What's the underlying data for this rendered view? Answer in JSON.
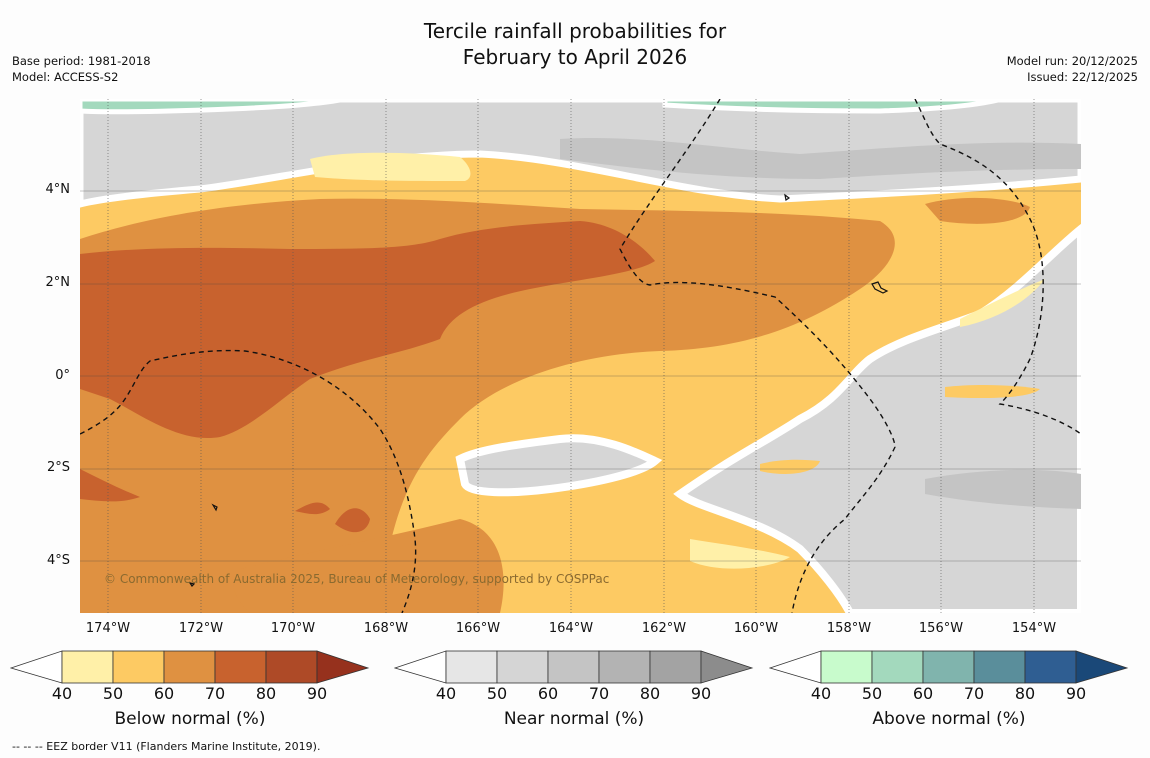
{
  "title": {
    "line1": "Tercile rainfall probabilities for",
    "line2": "February to April 2026"
  },
  "meta_left": {
    "base_period": "Base period: 1981-2018",
    "model": "Model: ACCESS-S2"
  },
  "meta_right": {
    "model_run": "Model run: 20/12/2025",
    "issued": "Issued: 22/12/2025"
  },
  "copyright": "© Commonwealth of Australia 2025, Bureau of Meteorology, supported by COSPPac",
  "axes": {
    "y_ticks": [
      "4°N",
      "2°N",
      "0°",
      "2°S",
      "4°S"
    ],
    "x_ticks": [
      "174°W",
      "172°W",
      "170°W",
      "168°W",
      "166°W",
      "164°W",
      "162°W",
      "160°W",
      "158°W",
      "156°W",
      "154°W"
    ]
  },
  "colorbars": [
    {
      "title": "Below normal (%)",
      "ticks": [
        "40",
        "50",
        "60",
        "70",
        "80",
        "90"
      ],
      "colors": [
        "#fff0a8",
        "#fdca63",
        "#df9141",
        "#c8622e",
        "#ae4a27",
        "#96311d"
      ]
    },
    {
      "title": "Near normal (%)",
      "ticks": [
        "40",
        "50",
        "60",
        "70",
        "80",
        "90"
      ],
      "colors": [
        "#e6e6e6",
        "#d5d5d5",
        "#c4c4c4",
        "#b3b3b3",
        "#a3a3a3",
        "#8c8c8c"
      ]
    },
    {
      "title": "Above normal (%)",
      "ticks": [
        "40",
        "50",
        "60",
        "70",
        "80",
        "90"
      ],
      "colors": [
        "#c8fbcc",
        "#a3d9bd",
        "#80b4ad",
        "#5a8e9b",
        "#2f5e92",
        "#1a4878"
      ]
    }
  ],
  "footnote": "--  --  -- EEZ border V11 (Flanders Marine Institute, 2019)."
}
